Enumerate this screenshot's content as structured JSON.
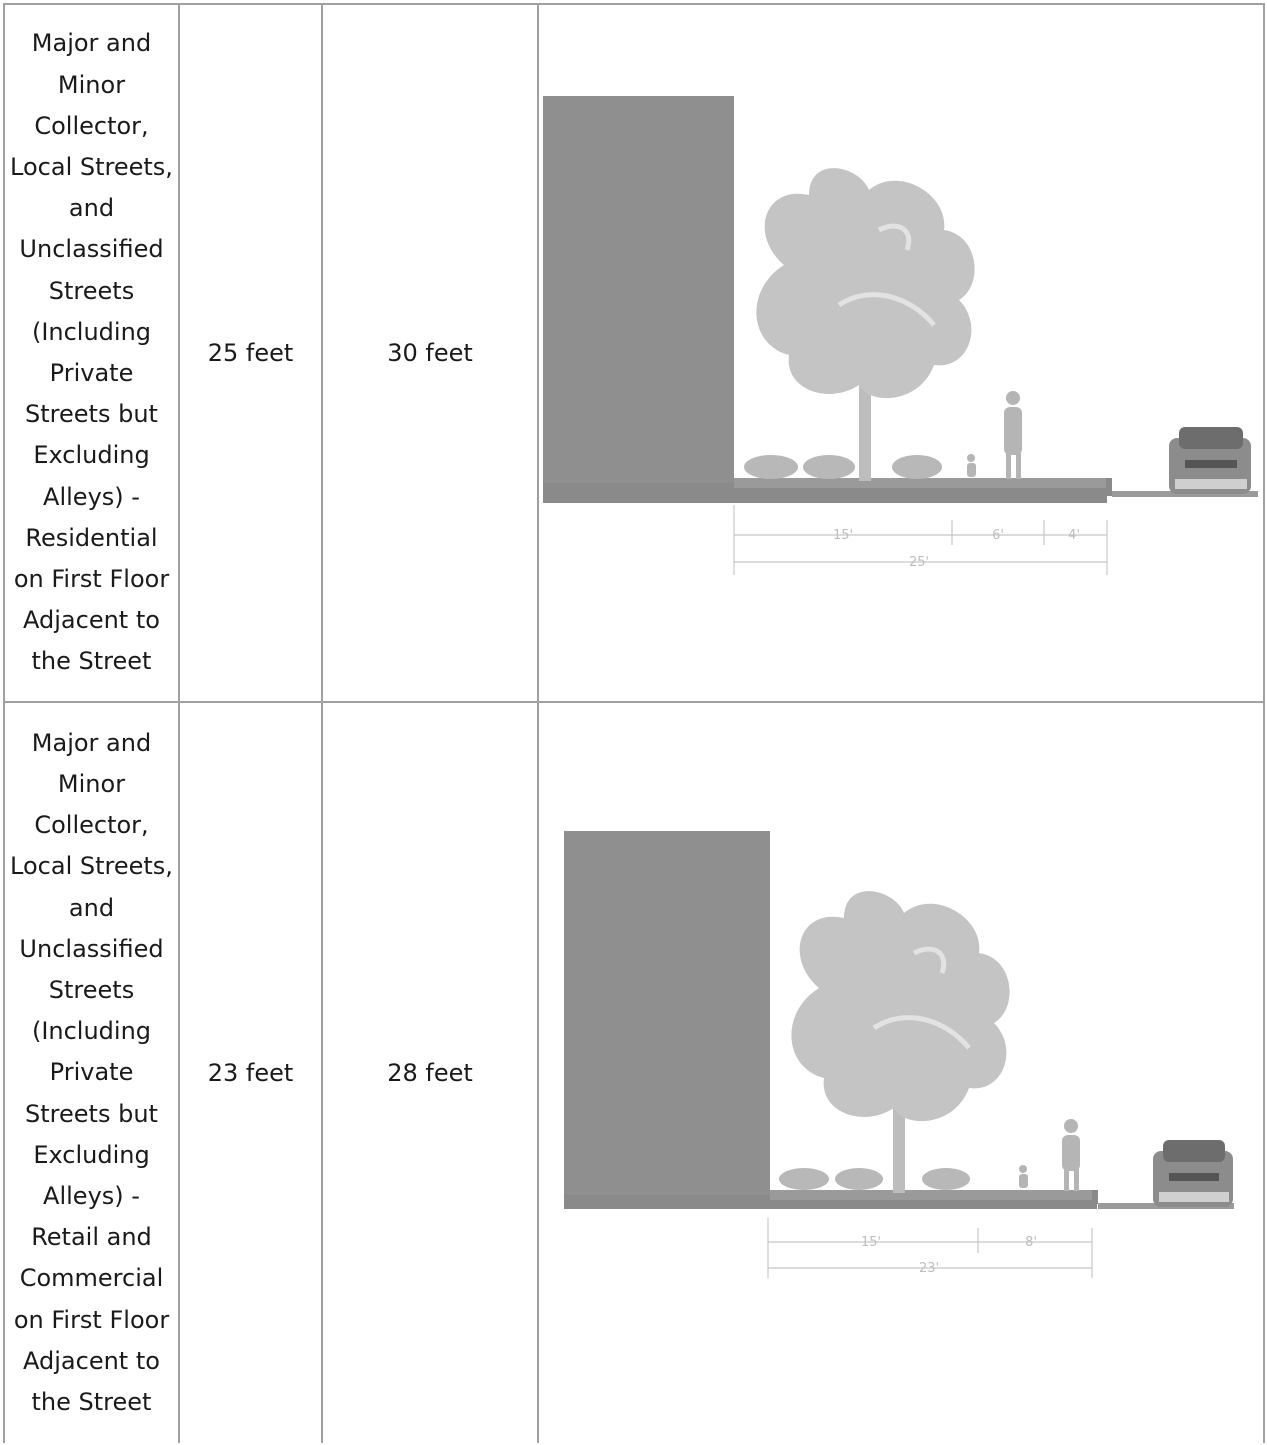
{
  "rows": [
    {
      "type": "Major and Minor Collector, Local Streets, and Unclassified Streets (Including Private Streets but Excluding Alleys) - Residential on First Floor Adjacent to the Street",
      "value_a": "25 feet",
      "value_b": "30 feet",
      "figure": {
        "segments": [
          "15'",
          "6'",
          "4'"
        ],
        "total": "25'"
      }
    },
    {
      "type": "Major and Minor Collector, Local Streets, and Unclassified Streets (Including Private Streets but Excluding Alleys) - Retail and Commercial on First Floor Adjacent to the Street",
      "value_a": "23 feet",
      "value_b": "28 feet",
      "figure": {
        "segments": [
          "15'",
          "8'"
        ],
        "total": "23'"
      }
    }
  ],
  "colors": {
    "border": "#a0a0a0",
    "building": "#8f8f8f",
    "tree": "#c4c4c4",
    "ground": "#7d7d7d"
  }
}
